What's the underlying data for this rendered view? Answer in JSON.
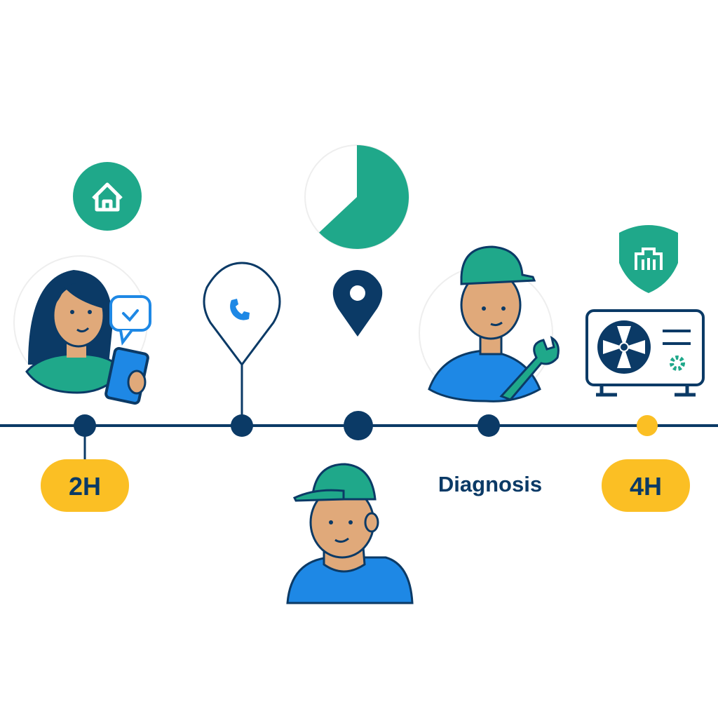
{
  "colors": {
    "navy": "#0b3a66",
    "teal": "#1fa88a",
    "yellow": "#fbbf24",
    "blue": "#1e88e5",
    "skin": "#e0a97a"
  },
  "timeline": {
    "start_label": "2H",
    "middle_label": "Diagnosis",
    "end_label": "4H"
  },
  "progress_pie": {
    "filled_fraction": 0.63
  },
  "icons": [
    "home-icon",
    "phone-icon",
    "location-pin-icon",
    "building-shield-icon",
    "air-conditioner-icon",
    "wrench-icon",
    "chat-check-icon",
    "smartphone-icon"
  ]
}
